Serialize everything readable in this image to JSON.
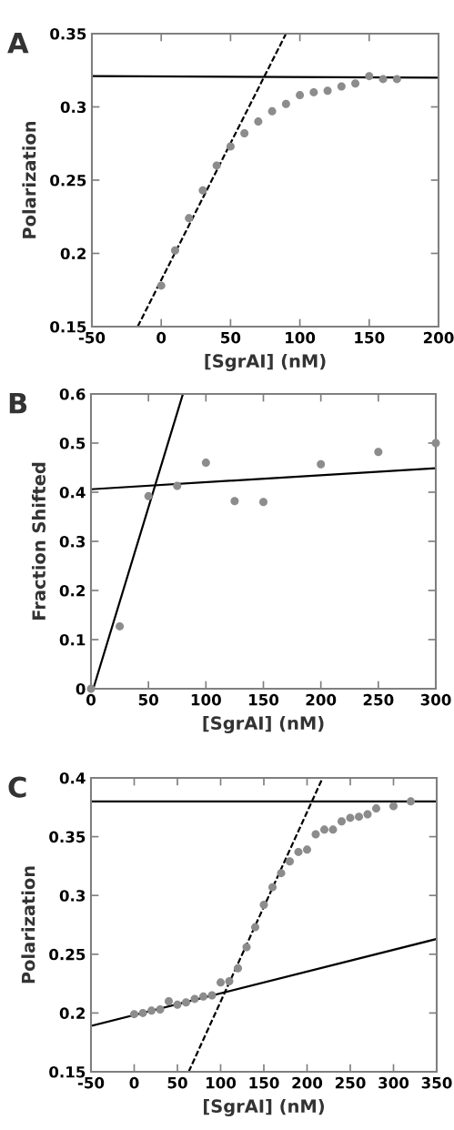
{
  "chart_data": [
    {
      "type": "scatter",
      "title": "A",
      "xlabel": "[SgrAI] (nM)",
      "ylabel": "Polarization",
      "xlim": [
        -50,
        200
      ],
      "ylim": [
        0.15,
        0.35
      ],
      "xticks": [
        -50,
        0,
        50,
        100,
        150,
        200
      ],
      "yticks": [
        0.15,
        0.2,
        0.25,
        0.3,
        0.35
      ],
      "grid": false,
      "legend": false,
      "series": [
        {
          "color": "#8c8c8c",
          "marker": "circle",
          "x": [
            0,
            10,
            20,
            30,
            40,
            50,
            60,
            70,
            80,
            90,
            100,
            110,
            120,
            130,
            140,
            150,
            160,
            170
          ],
          "values": [
            0.178,
            0.202,
            0.224,
            0.243,
            0.26,
            0.273,
            0.282,
            0.29,
            0.297,
            0.302,
            0.308,
            0.31,
            0.311,
            0.314,
            0.316,
            0.321,
            0.319,
            0.319
          ]
        },
        {
          "type": "line",
          "color": "#000000",
          "line_style": "solid",
          "x": [
            -50,
            200
          ],
          "values": [
            0.321,
            0.32
          ]
        },
        {
          "type": "line",
          "color": "#000000",
          "line_style": "dashed",
          "x": [
            -17,
            90
          ],
          "values": [
            0.15,
            0.35
          ]
        }
      ]
    },
    {
      "type": "scatter",
      "title": "B",
      "xlabel": "[SgrAI] (nM)",
      "ylabel": "Fraction Shifted",
      "xlim": [
        0,
        300
      ],
      "ylim": [
        0,
        0.6
      ],
      "xticks": [
        0,
        50,
        100,
        150,
        200,
        250,
        300
      ],
      "yticks": [
        0,
        0.1,
        0.2,
        0.3,
        0.4,
        0.5,
        0.6
      ],
      "grid": false,
      "legend": false,
      "series": [
        {
          "color": "#8c8c8c",
          "marker": "circle",
          "x": [
            0,
            25,
            50,
            75,
            100,
            125,
            150,
            200,
            250,
            300
          ],
          "values": [
            0,
            0.127,
            0.392,
            0.413,
            0.46,
            0.382,
            0.38,
            0.457,
            0.482,
            0.5
          ]
        },
        {
          "type": "line",
          "color": "#000000",
          "line_style": "solid",
          "x": [
            2,
            80
          ],
          "values": [
            0,
            0.6
          ]
        },
        {
          "type": "line",
          "color": "#000000",
          "line_style": "solid",
          "x": [
            0,
            300
          ],
          "values": [
            0.406,
            0.449
          ]
        }
      ]
    },
    {
      "type": "scatter",
      "title": "C",
      "xlabel": "[SgrAI] (nM)",
      "ylabel": "Polarization",
      "xlim": [
        -50,
        350
      ],
      "ylim": [
        0.15,
        0.4
      ],
      "xticks": [
        -50,
        0,
        50,
        100,
        150,
        200,
        250,
        300,
        350
      ],
      "yticks": [
        0.15,
        0.2,
        0.25,
        0.3,
        0.35,
        0.4
      ],
      "grid": false,
      "legend": false,
      "series": [
        {
          "color": "#8c8c8c",
          "marker": "circle",
          "x": [
            0,
            10,
            20,
            30,
            40,
            50,
            60,
            70,
            80,
            90,
            100,
            110,
            120,
            130,
            140,
            150,
            160,
            170,
            180,
            190,
            200,
            210,
            220,
            230,
            240,
            250,
            260,
            270,
            280,
            300,
            320
          ],
          "values": [
            0.199,
            0.2,
            0.202,
            0.203,
            0.21,
            0.207,
            0.209,
            0.212,
            0.214,
            0.215,
            0.226,
            0.227,
            0.238,
            0.256,
            0.273,
            0.292,
            0.307,
            0.319,
            0.329,
            0.337,
            0.339,
            0.352,
            0.356,
            0.356,
            0.363,
            0.366,
            0.367,
            0.369,
            0.374,
            0.376,
            0.38
          ]
        },
        {
          "type": "line",
          "color": "#000000",
          "line_style": "solid",
          "x": [
            -50,
            350
          ],
          "values": [
            0.38,
            0.38
          ]
        },
        {
          "type": "line",
          "color": "#000000",
          "line_style": "dashed",
          "x": [
            63,
            218
          ],
          "values": [
            0.15,
            0.4
          ]
        },
        {
          "type": "line",
          "color": "#000000",
          "line_style": "solid",
          "x": [
            -50,
            350
          ],
          "values": [
            0.189,
            0.263
          ]
        }
      ]
    }
  ]
}
